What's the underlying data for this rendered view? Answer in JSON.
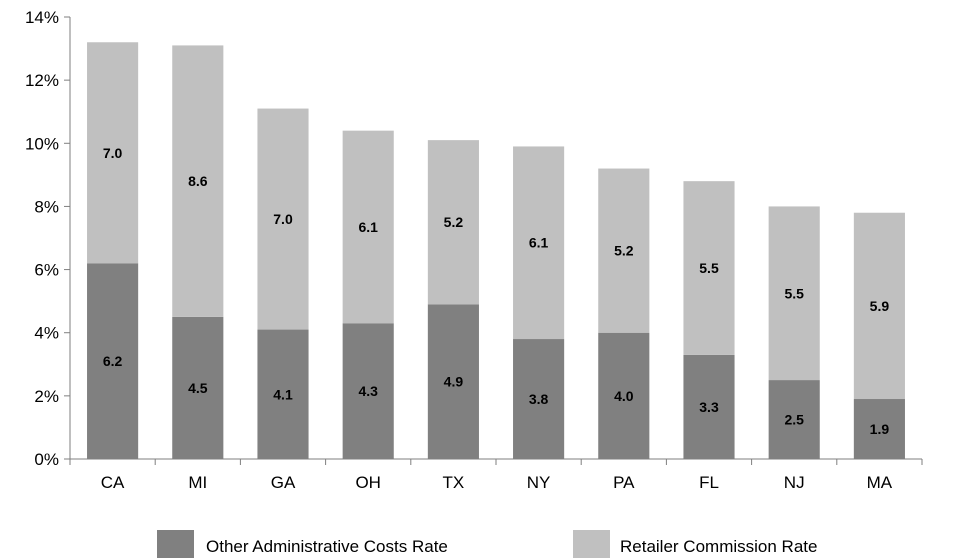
{
  "chart_data": {
    "type": "bar",
    "stacked": true,
    "categories": [
      "CA",
      "MI",
      "GA",
      "OH",
      "TX",
      "NY",
      "PA",
      "FL",
      "NJ",
      "MA"
    ],
    "series": [
      {
        "name": "Other Administrative Costs Rate",
        "color": "#808080",
        "values": [
          6.2,
          4.5,
          4.1,
          4.3,
          4.9,
          3.8,
          4.0,
          3.3,
          2.5,
          1.9
        ],
        "labels": [
          "6.2",
          "4.5",
          "4.1",
          "4.3",
          "4.9",
          "3.8",
          "4.0",
          "3.3",
          "2.5",
          "1.9"
        ]
      },
      {
        "name": "Retailer Commission Rate",
        "color": "#c0c0c0",
        "values": [
          7.0,
          8.6,
          7.0,
          6.1,
          5.2,
          6.1,
          5.2,
          5.5,
          5.5,
          5.9
        ],
        "labels": [
          "7.0",
          "8.6",
          "7.0",
          "6.1",
          "5.2",
          "6.1",
          "5.2",
          "5.5",
          "5.5",
          "5.9"
        ]
      }
    ],
    "ylim": [
      0,
      14
    ],
    "yticks": [
      0,
      2,
      4,
      6,
      8,
      10,
      12,
      14
    ],
    "ytick_labels": [
      "0%",
      "2%",
      "4%",
      "6%",
      "8%",
      "10%",
      "12%",
      "14%"
    ],
    "legend_position": "bottom",
    "grid": false
  }
}
